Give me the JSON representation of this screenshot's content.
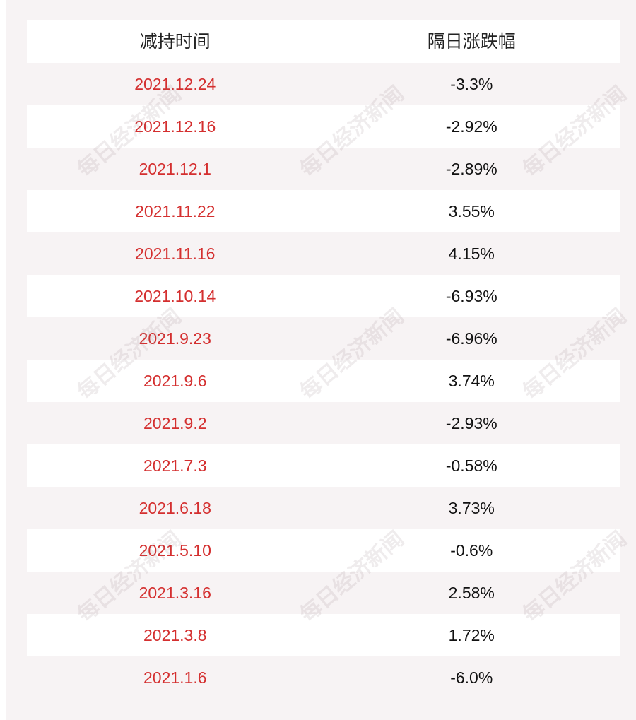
{
  "table": {
    "headers": {
      "date": "减持时间",
      "change": "隔日涨跌幅"
    },
    "rows": [
      {
        "date": "2021.12.24",
        "change": "-3.3%"
      },
      {
        "date": "2021.12.16",
        "change": "-2.92%"
      },
      {
        "date": "2021.12.1",
        "change": "-2.89%"
      },
      {
        "date": "2021.11.22",
        "change": "3.55%"
      },
      {
        "date": "2021.11.16",
        "change": "4.15%"
      },
      {
        "date": "2021.10.14",
        "change": "-6.93%"
      },
      {
        "date": "2021.9.23",
        "change": "-6.96%"
      },
      {
        "date": "2021.9.6",
        "change": "3.74%"
      },
      {
        "date": "2021.9.2",
        "change": "-2.93%"
      },
      {
        "date": "2021.7.3",
        "change": "-0.58%"
      },
      {
        "date": "2021.6.18",
        "change": "3.73%"
      },
      {
        "date": "2021.5.10",
        "change": "-0.6%"
      },
      {
        "date": "2021.3.16",
        "change": "2.58%"
      },
      {
        "date": "2021.3.8",
        "change": "1.72%"
      },
      {
        "date": "2021.1.6",
        "change": "-6.0%"
      }
    ]
  },
  "watermark": {
    "text": "每日经济新闻"
  },
  "colors": {
    "date_text": "#d42f2f",
    "change_text": "#111111",
    "stripe_bg": "#f7f3f4",
    "row_bg": "#ffffff"
  }
}
